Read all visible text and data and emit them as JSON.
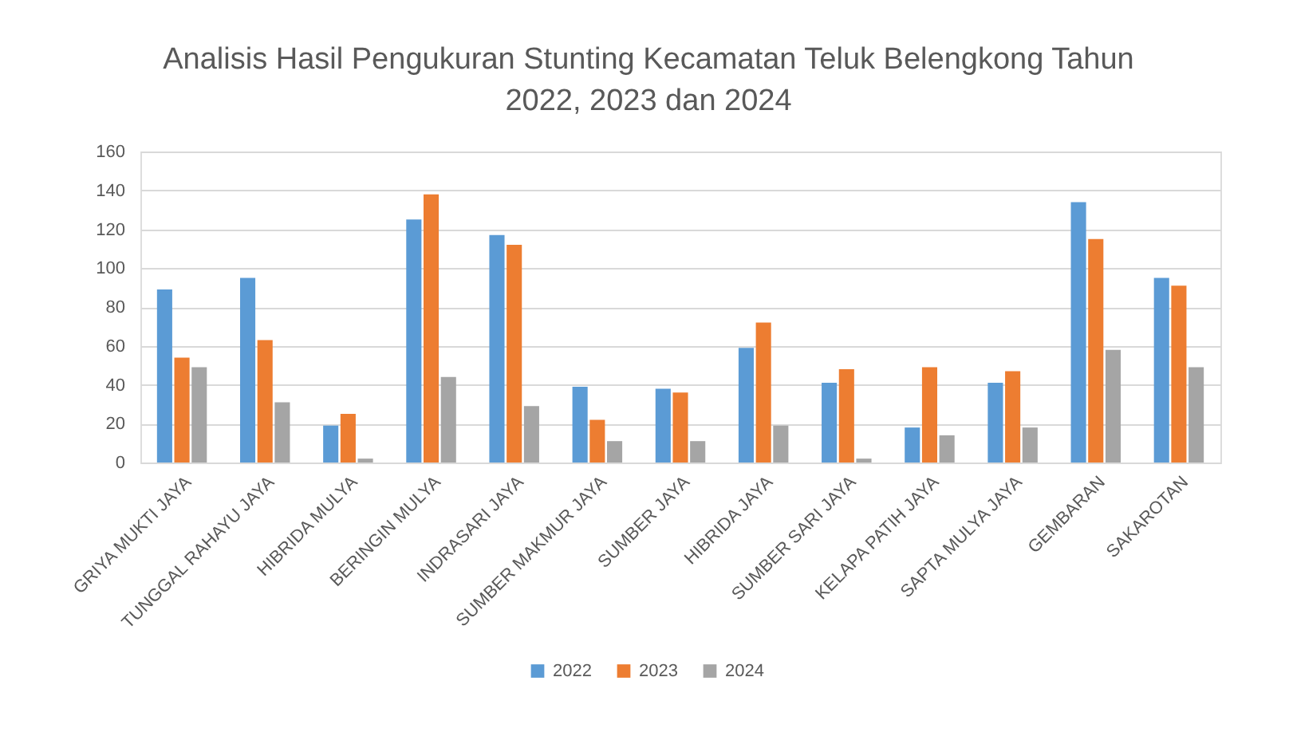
{
  "chart_data": {
    "type": "bar",
    "title": "Analisis Hasil Pengukuran Stunting Kecamatan Teluk Belengkong Tahun\n2022, 2023 dan 2024",
    "categories": [
      "GRIYA MUKTI JAYA",
      "TUNGGAL RAHAYU JAYA",
      "HIBRIDA MULYA",
      "BERINGIN MULYA",
      "INDRASARI JAYA",
      "SUMBER MAKMUR JAYA",
      "SUMBER JAYA",
      "HIBRIDA JAYA",
      "SUMBER SARI JAYA",
      "KELAPA PATIH JAYA",
      "SAPTA MULYA JAYA",
      "GEMBARAN",
      "SAKAROTAN"
    ],
    "series": [
      {
        "name": "2022",
        "color": "#5b9bd5",
        "values": [
          89,
          95,
          19,
          125,
          117,
          39,
          38,
          59,
          41,
          18,
          41,
          134,
          95
        ]
      },
      {
        "name": "2023",
        "color": "#ed7d31",
        "values": [
          54,
          63,
          25,
          138,
          112,
          22,
          36,
          72,
          48,
          49,
          47,
          115,
          91
        ]
      },
      {
        "name": "2024",
        "color": "#a5a5a5",
        "values": [
          49,
          31,
          2,
          44,
          29,
          11,
          11,
          19,
          2,
          14,
          18,
          58,
          49
        ]
      }
    ],
    "ylim": [
      0,
      160
    ],
    "yticks": [
      0,
      20,
      40,
      60,
      80,
      100,
      120,
      140,
      160
    ],
    "grid": "y",
    "legend": "bottom"
  }
}
